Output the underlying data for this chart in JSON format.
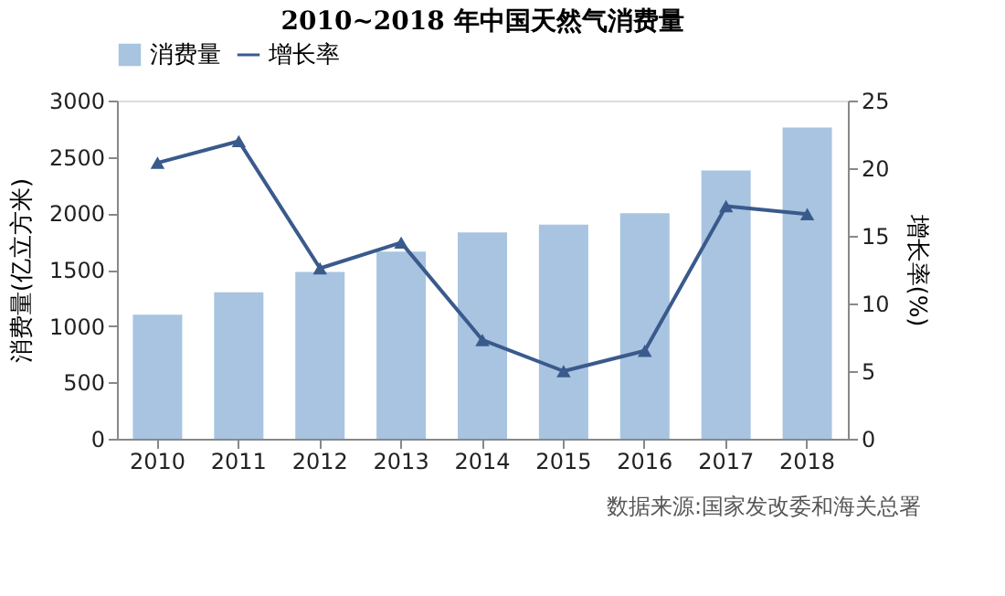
{
  "chart_data": {
    "type": "bar",
    "title": "2010~2018 年中国天然气消费量",
    "categories": [
      "2010",
      "2011",
      "2012",
      "2013",
      "2014",
      "2015",
      "2016",
      "2017",
      "2018"
    ],
    "series": [
      {
        "name": "消费量",
        "color": "#a8c4e0",
        "values": [
          1100,
          1300,
          1480,
          1660,
          1830,
          1900,
          2000,
          2380,
          2760
        ]
      },
      {
        "name": "增长率",
        "type": "line",
        "axis": "y2",
        "color": "#3a5a8c",
        "marker": "triangle",
        "values": [
          20.4,
          22.0,
          12.6,
          14.5,
          7.3,
          5.0,
          6.5,
          17.2,
          16.6
        ]
      }
    ],
    "ylabel": "消费量(亿立方米)",
    "y2label": "增长率(%)",
    "ylim": [
      0,
      3000
    ],
    "yticks": [
      0,
      500,
      1000,
      1500,
      2000,
      2500,
      3000
    ],
    "y2lim": [
      0,
      25
    ],
    "y2ticks": [
      0,
      5,
      10,
      15,
      20,
      25
    ],
    "grid": false,
    "legend": "top",
    "annotations": [
      "数据来源:国家发改委和海关总署"
    ]
  }
}
